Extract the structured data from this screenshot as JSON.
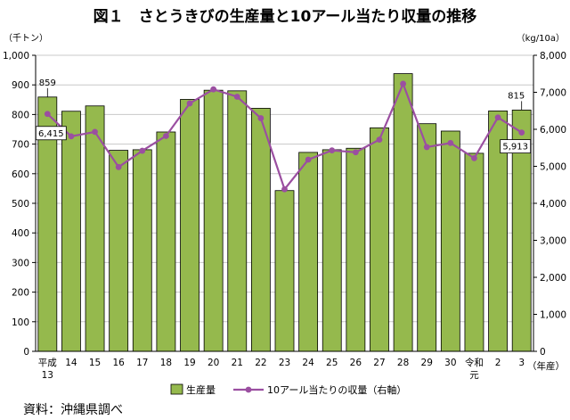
{
  "title": "図１　さとうきびの生産量と10アール当たり収量の推移",
  "source": "資料：沖縄県調べ",
  "chart_data": {
    "type": "bar",
    "categories": [
      [
        "平成",
        "13"
      ],
      [
        "14"
      ],
      [
        "15"
      ],
      [
        "16"
      ],
      [
        "17"
      ],
      [
        "18"
      ],
      [
        "19"
      ],
      [
        "20"
      ],
      [
        "21"
      ],
      [
        "22"
      ],
      [
        "23"
      ],
      [
        "24"
      ],
      [
        "25"
      ],
      [
        "26"
      ],
      [
        "27"
      ],
      [
        "28"
      ],
      [
        "29"
      ],
      [
        "30"
      ],
      [
        "令和",
        "元"
      ],
      [
        "2"
      ],
      [
        "3"
      ]
    ],
    "xlabel": "（年産）",
    "left_axis": {
      "unit": "（千トン）",
      "ylim": [
        0,
        1000
      ],
      "ticks": [
        "0",
        "100",
        "200",
        "300",
        "400",
        "500",
        "600",
        "700",
        "800",
        "900",
        "1,000"
      ]
    },
    "right_axis": {
      "unit": "（kg/10a）",
      "ylim": [
        0,
        8000
      ],
      "ticks": [
        "0",
        "1,000",
        "2,000",
        "3,000",
        "4,000",
        "5,000",
        "6,000",
        "7,000",
        "8,000"
      ]
    },
    "series": [
      {
        "name": "生産量",
        "type": "bar",
        "axis": "left",
        "color": "#95b94d",
        "values": [
          859,
          811,
          829,
          679,
          681,
          741,
          851,
          882,
          880,
          821,
          543,
          672,
          681,
          686,
          755,
          938,
          769,
          744,
          669,
          812,
          815
        ]
      },
      {
        "name": "10アール当たりの収量（右軸）",
        "type": "line",
        "axis": "right",
        "color": "#9b4fa1",
        "values": [
          6415,
          5810,
          5930,
          4980,
          5420,
          5820,
          6700,
          7080,
          6880,
          6300,
          4380,
          5180,
          5430,
          5380,
          5720,
          7230,
          5520,
          5630,
          5220,
          6320,
          5913
        ]
      }
    ],
    "data_labels": [
      {
        "series": 0,
        "index": 0,
        "text": "859"
      },
      {
        "series": 0,
        "index": 20,
        "text": "815"
      },
      {
        "series": 1,
        "index": 0,
        "text": "6,415"
      },
      {
        "series": 1,
        "index": 20,
        "text": "5,913"
      }
    ],
    "grid": true,
    "legend": "bottom"
  }
}
